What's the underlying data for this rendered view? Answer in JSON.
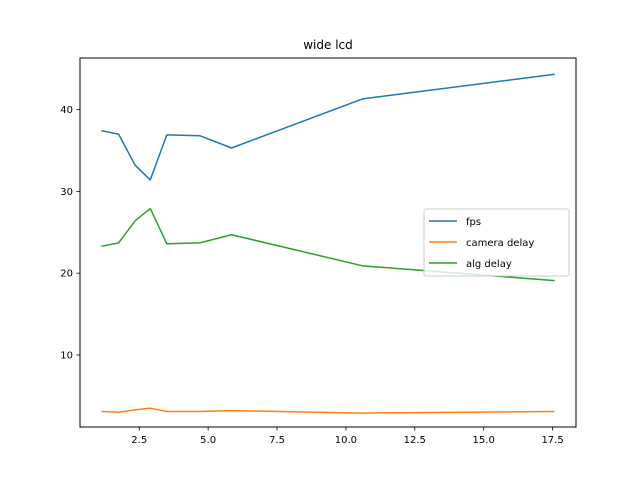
{
  "chart_data": {
    "type": "line",
    "title": "wide lcd",
    "xlabel": "",
    "ylabel": "",
    "xlim": [
      0.35,
      18.35
    ],
    "ylim": [
      1.2,
      46.3
    ],
    "xticks": [
      2.5,
      5.0,
      7.5,
      10.0,
      12.5,
      15.0,
      17.5
    ],
    "xtick_labels": [
      "2.5",
      "5.0",
      "7.5",
      "10.0",
      "12.5",
      "15.0",
      "17.5"
    ],
    "yticks": [
      10,
      20,
      30,
      40
    ],
    "ytick_labels": [
      "10",
      "20",
      "30",
      "40"
    ],
    "legend_position": "center-right",
    "grid": false,
    "x": [
      1.15,
      1.75,
      2.35,
      2.9,
      3.5,
      4.7,
      5.85,
      10.6,
      17.55
    ],
    "series": [
      {
        "name": "fps",
        "color": "#1f77b4",
        "values": [
          37.4,
          37.0,
          33.2,
          31.4,
          36.9,
          36.8,
          35.3,
          41.3,
          44.3
        ]
      },
      {
        "name": "camera delay",
        "color": "#ff7f0e",
        "values": [
          3.1,
          3.0,
          3.3,
          3.5,
          3.1,
          3.1,
          3.2,
          2.9,
          3.1
        ]
      },
      {
        "name": "alg delay",
        "color": "#2ca02c",
        "values": [
          23.3,
          23.7,
          26.4,
          27.9,
          23.6,
          23.7,
          24.7,
          20.9,
          19.1
        ]
      }
    ]
  }
}
